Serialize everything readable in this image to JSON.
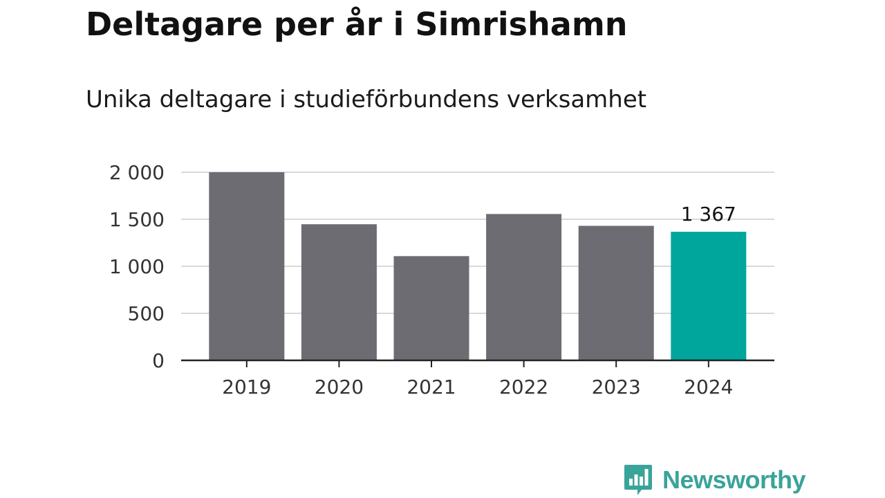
{
  "header": {
    "title": "Deltagare per år i Simrishamn",
    "subtitle": "Unika deltagare i studieförbundens verksamhet"
  },
  "brand": {
    "name": "Newsworthy",
    "logo_icon": "bar-chart-speech-bubble-icon",
    "color": "#3aa39a"
  },
  "colors": {
    "bar_default": "#6d6c72",
    "bar_highlight": "#00a59b",
    "gridline": "#d9d9d9",
    "axis": "#222222"
  },
  "chart_data": {
    "type": "bar",
    "title": "Deltagare per år i Simrishamn",
    "subtitle": "Unika deltagare i studieförbundens verksamhet",
    "categories": [
      "2019",
      "2020",
      "2021",
      "2022",
      "2023",
      "2024"
    ],
    "values": [
      2000,
      1447,
      1108,
      1556,
      1430,
      1367
    ],
    "highlight_index": 5,
    "data_labels": [
      {
        "index": 5,
        "text": "1 367"
      }
    ],
    "xlabel": "",
    "ylabel": "",
    "ylim": [
      0,
      2000
    ],
    "yticks": [
      0,
      500,
      1000,
      1500,
      2000
    ],
    "ytick_labels": [
      "0",
      "500",
      "1 000",
      "1 500",
      "2 000"
    ],
    "grid": true,
    "legend": "none"
  }
}
